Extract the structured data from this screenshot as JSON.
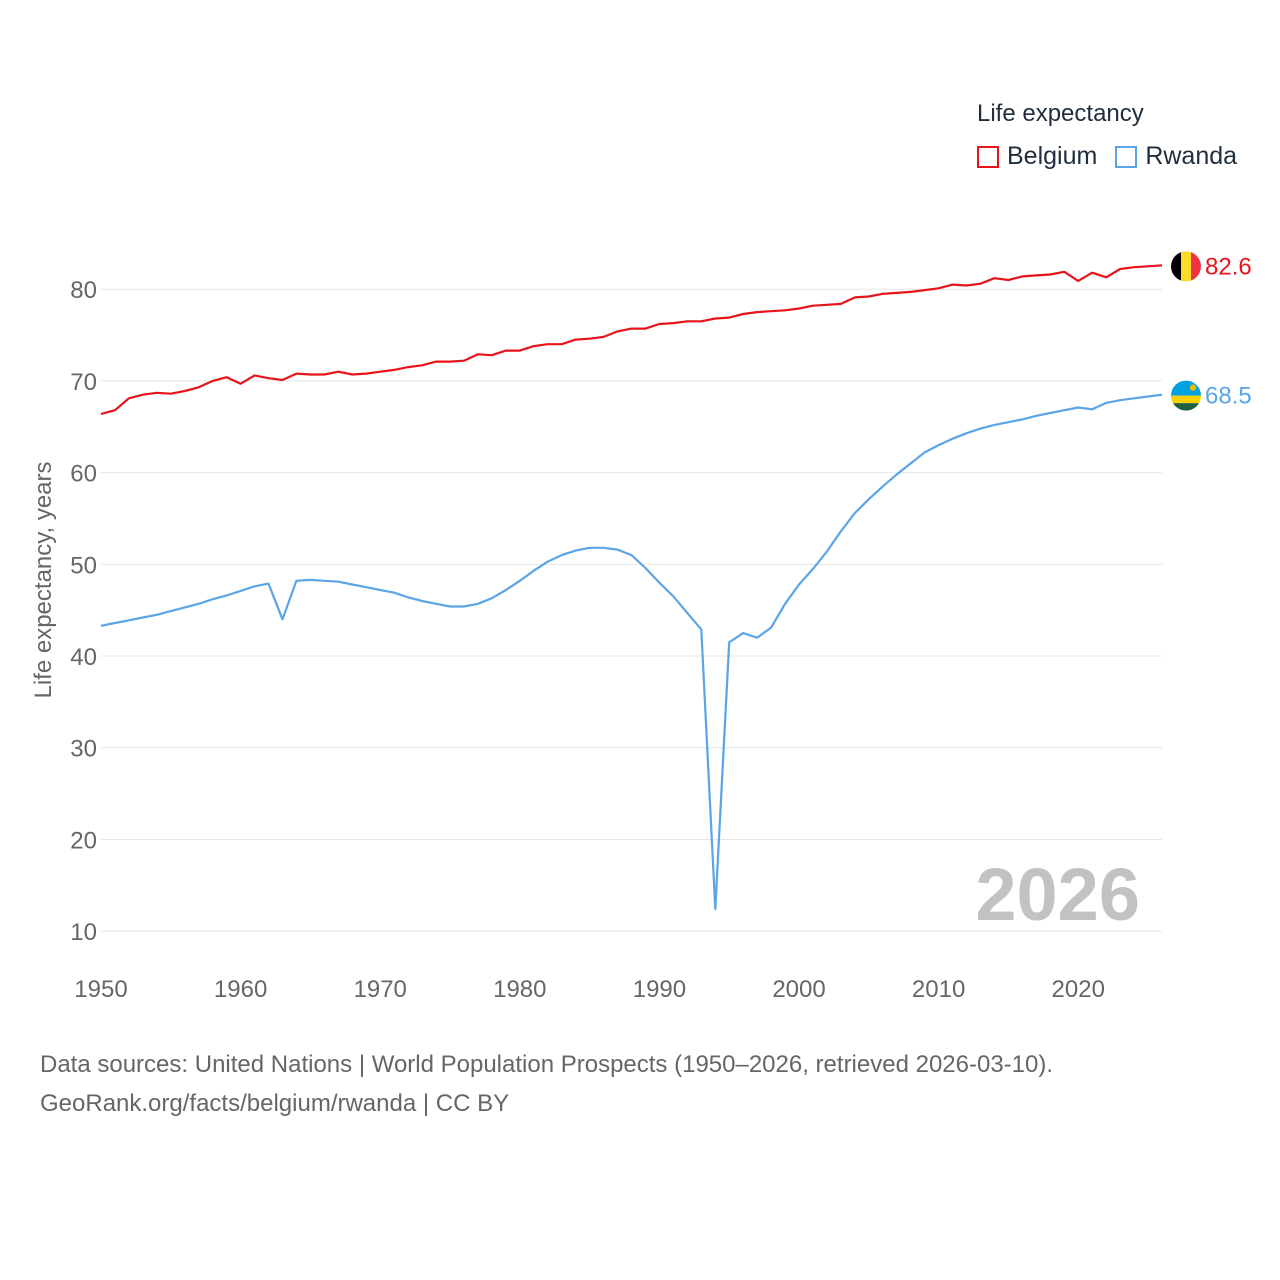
{
  "legend": {
    "title": "Life expectancy"
  },
  "footer": {
    "line1": "Data sources: United Nations | World Population Prospects (1950–2026, retrieved 2026-03-10).",
    "line2": "GeoRank.org/facts/belgium/rwanda | CC BY"
  },
  "chart_data": {
    "type": "line",
    "title": "Life expectancy",
    "ylabel": "Life expectancy, years",
    "xlabel": "",
    "year_label": "2026",
    "xlim": [
      1950,
      2026
    ],
    "ylim": [
      5,
      87
    ],
    "x_ticks": [
      1950,
      1960,
      1970,
      1980,
      1990,
      2000,
      2010,
      2020
    ],
    "y_ticks": [
      10,
      20,
      30,
      40,
      50,
      60,
      70,
      80
    ],
    "grid": true,
    "legend_position": "top-right",
    "x": [
      1950,
      1951,
      1952,
      1953,
      1954,
      1955,
      1956,
      1957,
      1958,
      1959,
      1960,
      1961,
      1962,
      1963,
      1964,
      1965,
      1966,
      1967,
      1968,
      1969,
      1970,
      1971,
      1972,
      1973,
      1974,
      1975,
      1976,
      1977,
      1978,
      1979,
      1980,
      1981,
      1982,
      1983,
      1984,
      1985,
      1986,
      1987,
      1988,
      1989,
      1990,
      1991,
      1992,
      1993,
      1994,
      1995,
      1996,
      1997,
      1998,
      1999,
      2000,
      2001,
      2002,
      2003,
      2004,
      2005,
      2006,
      2007,
      2008,
      2009,
      2010,
      2011,
      2012,
      2013,
      2014,
      2015,
      2016,
      2017,
      2018,
      2019,
      2020,
      2021,
      2022,
      2023,
      2024,
      2025,
      2026
    ],
    "series": [
      {
        "name": "Belgium",
        "color": "#e8141b",
        "end_label": "82.6",
        "flag": "belgium-flag-icon",
        "values": [
          66.4,
          66.8,
          68.1,
          68.5,
          68.7,
          68.6,
          68.9,
          69.3,
          70.0,
          70.4,
          69.7,
          70.6,
          70.3,
          70.1,
          70.8,
          70.7,
          70.7,
          71.0,
          70.7,
          70.8,
          71.0,
          71.2,
          71.5,
          71.7,
          72.1,
          72.1,
          72.2,
          72.9,
          72.8,
          73.3,
          73.3,
          73.8,
          74.0,
          74.0,
          74.5,
          74.6,
          74.8,
          75.4,
          75.7,
          75.7,
          76.2,
          76.3,
          76.5,
          76.5,
          76.8,
          76.9,
          77.3,
          77.5,
          77.6,
          77.7,
          77.9,
          78.2,
          78.3,
          78.4,
          79.1,
          79.2,
          79.5,
          79.6,
          79.7,
          79.9,
          80.1,
          80.5,
          80.4,
          80.6,
          81.2,
          81.0,
          81.4,
          81.5,
          81.6,
          81.9,
          80.9,
          81.8,
          81.3,
          82.2,
          82.4,
          82.5,
          82.6
        ]
      },
      {
        "name": "Rwanda",
        "color": "#5ba4e5",
        "end_label": "68.5",
        "flag": "rwanda-flag-icon",
        "values": [
          43.3,
          43.6,
          43.9,
          44.2,
          44.5,
          44.9,
          45.3,
          45.7,
          46.2,
          46.6,
          47.1,
          47.6,
          47.9,
          44.0,
          48.2,
          48.3,
          48.2,
          48.1,
          47.8,
          47.5,
          47.2,
          46.9,
          46.4,
          46.0,
          45.7,
          45.4,
          45.4,
          45.7,
          46.3,
          47.2,
          48.2,
          49.3,
          50.3,
          51.0,
          51.5,
          51.8,
          51.8,
          51.6,
          51.0,
          49.6,
          48.0,
          46.5,
          44.7,
          42.9,
          12.4,
          41.5,
          42.5,
          42.0,
          43.1,
          45.7,
          47.8,
          49.5,
          51.4,
          53.6,
          55.6,
          57.1,
          58.5,
          59.8,
          61.0,
          62.2,
          63.0,
          63.7,
          64.3,
          64.8,
          65.2,
          65.5,
          65.8,
          66.2,
          66.5,
          66.8,
          67.1,
          66.9,
          67.6,
          67.9,
          68.1,
          68.3,
          68.5
        ]
      }
    ]
  }
}
